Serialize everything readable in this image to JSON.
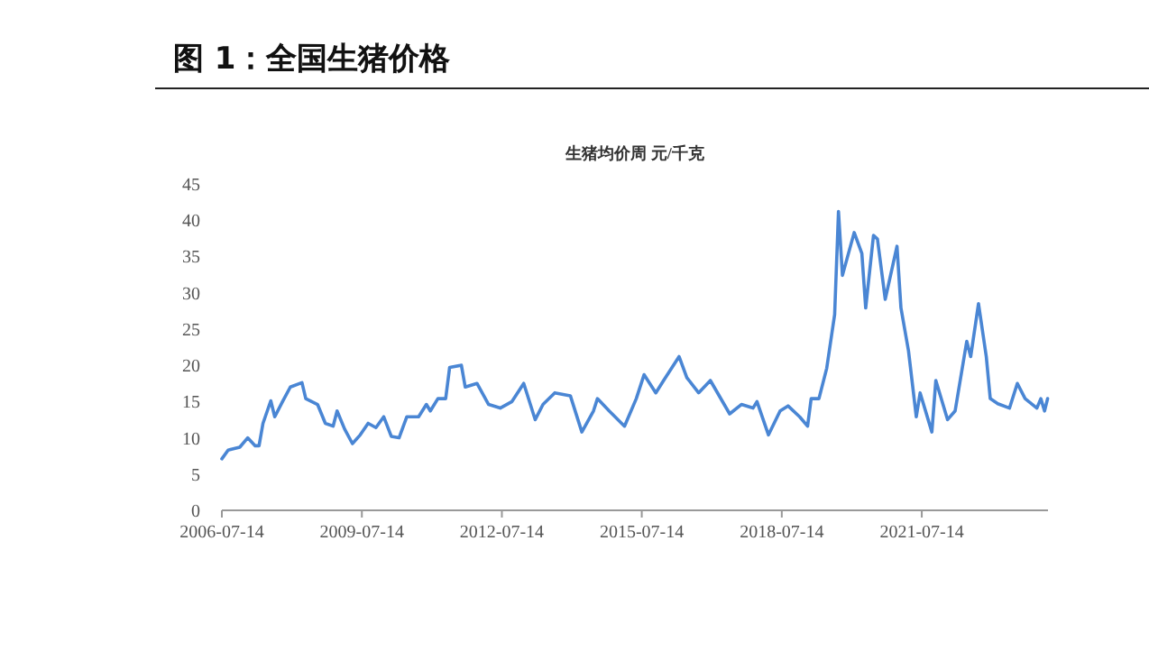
{
  "chart_data": {
    "type": "line",
    "title": "图 1：全国生猪价格",
    "subtitle": "生猪均价周 元/千克",
    "x": [
      "2006-07-14",
      "2006-09",
      "2006-12",
      "2007-02",
      "2007-04",
      "2007-05",
      "2007-06",
      "2007-08",
      "2007-09",
      "2007-11",
      "2008-01",
      "2008-04",
      "2008-05",
      "2008-08",
      "2008-10",
      "2008-12",
      "2009-01",
      "2009-03",
      "2009-05",
      "2009-07",
      "2009-09",
      "2009-11",
      "2010-01",
      "2010-03",
      "2010-05",
      "2010-07",
      "2010-10",
      "2010-12",
      "2011-01",
      "2011-03",
      "2011-05",
      "2011-06",
      "2011-09",
      "2011-10",
      "2012-01",
      "2012-04",
      "2012-07",
      "2012-10",
      "2013-01",
      "2013-04",
      "2013-06",
      "2013-09",
      "2014-01",
      "2014-04",
      "2014-07",
      "2014-08",
      "2014-11",
      "2015-03",
      "2015-06",
      "2015-08",
      "2015-11",
      "2016-01",
      "2016-05",
      "2016-07",
      "2016-10",
      "2017-01",
      "2017-06",
      "2017-09",
      "2017-12",
      "2018-01",
      "2018-04",
      "2018-07",
      "2018-09",
      "2018-12",
      "2019-02",
      "2019-03",
      "2019-05",
      "2019-07",
      "2019-09",
      "2019-10",
      "2019-11",
      "2020-02",
      "2020-04",
      "2020-05",
      "2020-07",
      "2020-08",
      "2020-10",
      "2021-01",
      "2021-02",
      "2021-04",
      "2021-06",
      "2021-07",
      "2021-10",
      "2021-11",
      "2022-02",
      "2022-04",
      "2022-07",
      "2022-08",
      "2022-10",
      "2022-12",
      "2023-01",
      "2023-03",
      "2023-06",
      "2023-08",
      "2023-10",
      "2024-01",
      "2024-02",
      "2024-03-01",
      "2024-03-25"
    ],
    "series": [
      {
        "color": "#4a86d4",
        "values": [
          7.1,
          8.3,
          8.7,
          10,
          8.9,
          8.9,
          12,
          15.1,
          12.9,
          15,
          17,
          17.6,
          15.4,
          14.6,
          12,
          11.6,
          13.7,
          11.2,
          9.2,
          10.4,
          12,
          11.4,
          12.9,
          10.2,
          10,
          12.9,
          12.9,
          14.6,
          13.7,
          15.4,
          15.4,
          19.7,
          20,
          17,
          17.5,
          14.6,
          14.1,
          15,
          17.5,
          12.5,
          14.6,
          16.2,
          15.8,
          10.8,
          13.7,
          15.4,
          13.7,
          11.6,
          15.4,
          18.7,
          16.2,
          17.9,
          21.2,
          18.3,
          16.2,
          17.9,
          13.3,
          14.6,
          14.1,
          15,
          10.4,
          13.7,
          14.4,
          12.9,
          11.6,
          15.4,
          15.4,
          19.6,
          27,
          41.2,
          32.4,
          38.3,
          35.4,
          27.9,
          37.9,
          37.4,
          29.1,
          36.4,
          27.9,
          22,
          12.9,
          16.2,
          10.8,
          17.9,
          12.5,
          13.7,
          23.3,
          21.2,
          28.5,
          21.2,
          15.4,
          14.7,
          14.1,
          17.5,
          15.4,
          14.1,
          15.4,
          13.7,
          15.4
        ]
      }
    ],
    "xlim": [
      "2006-07-14",
      "2024-03-28"
    ],
    "xticks": [
      "2006-07-14",
      "2009-07-14",
      "2012-07-14",
      "2015-07-14",
      "2018-07-14",
      "2021-07-14"
    ],
    "ylim": [
      0,
      45
    ],
    "yticks": [
      0,
      5,
      10,
      15,
      20,
      25,
      30,
      35,
      40,
      45
    ],
    "grid": false,
    "marker": "none",
    "line_style": "solid"
  }
}
